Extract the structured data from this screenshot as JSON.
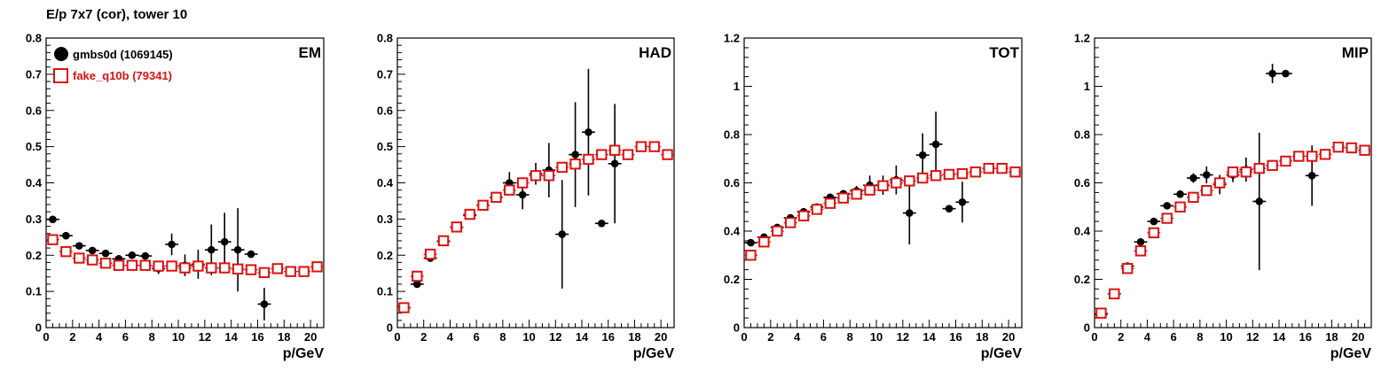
{
  "figure": {
    "title": "E/p 7x7 (cor), tower 10"
  },
  "legend": {
    "series_black": "gmbs0d (1069145)",
    "series_red": "fake_q10b (79341)"
  },
  "colors": {
    "black": "#000000",
    "red": "#dd1111"
  },
  "chart_data": [
    {
      "type": "scatter",
      "label": "EM",
      "xlabel": "p/GeV",
      "ylabel": "",
      "xlim": [
        0,
        21
      ],
      "ylim": [
        0,
        0.8
      ],
      "xticks": [
        0,
        2,
        4,
        6,
        8,
        10,
        12,
        14,
        16,
        18,
        20
      ],
      "yticks": [
        0,
        0.1,
        0.2,
        0.3,
        0.4,
        0.5,
        0.6,
        0.7,
        0.8
      ],
      "ytick_labels": [
        "0",
        "0.1",
        "0.2",
        "0.3",
        "0.4",
        "0.5",
        "0.6",
        "0.7",
        "0.8"
      ],
      "legend_position": "top-left",
      "series": [
        {
          "name": "gmbs0d (1069145)",
          "marker": "filled-circle",
          "points": [
            [
              0.5,
              0.299,
              0.008
            ],
            [
              1.5,
              0.254,
              0.008
            ],
            [
              2.5,
              0.226,
              0.008
            ],
            [
              3.5,
              0.213,
              0.008
            ],
            [
              4.5,
              0.205,
              0.008
            ],
            [
              5.5,
              0.19,
              0.008
            ],
            [
              6.5,
              0.2,
              0.01
            ],
            [
              7.5,
              0.198,
              0.01
            ],
            [
              8.5,
              0.163,
              0.015
            ],
            [
              9.5,
              0.23,
              0.03
            ],
            [
              10.5,
              0.172,
              0.03
            ],
            [
              11.5,
              0.175,
              0.04
            ],
            [
              12.5,
              0.215,
              0.07
            ],
            [
              13.5,
              0.237,
              0.08
            ],
            [
              14.5,
              0.215,
              0.115
            ],
            [
              15.5,
              0.203,
              0.01
            ],
            [
              16.5,
              0.065,
              0.045
            ]
          ]
        },
        {
          "name": "fake_q10b (79341)",
          "marker": "open-square",
          "points": [
            [
              0.5,
              0.243
            ],
            [
              1.5,
              0.21
            ],
            [
              2.5,
              0.192
            ],
            [
              3.5,
              0.187
            ],
            [
              4.5,
              0.178
            ],
            [
              5.5,
              0.172
            ],
            [
              6.5,
              0.172
            ],
            [
              7.5,
              0.172
            ],
            [
              8.5,
              0.17
            ],
            [
              9.5,
              0.17
            ],
            [
              10.5,
              0.165
            ],
            [
              11.5,
              0.17
            ],
            [
              12.5,
              0.165
            ],
            [
              13.5,
              0.165
            ],
            [
              14.5,
              0.162
            ],
            [
              15.5,
              0.16
            ],
            [
              16.5,
              0.152
            ],
            [
              17.5,
              0.163
            ],
            [
              18.5,
              0.155
            ],
            [
              19.5,
              0.155
            ],
            [
              20.5,
              0.168
            ]
          ]
        }
      ]
    },
    {
      "type": "scatter",
      "label": "HAD",
      "xlabel": "p/GeV",
      "ylabel": "",
      "xlim": [
        0,
        21
      ],
      "ylim": [
        0,
        0.8
      ],
      "xticks": [
        0,
        2,
        4,
        6,
        8,
        10,
        12,
        14,
        16,
        18,
        20
      ],
      "yticks": [
        0,
        0.1,
        0.2,
        0.3,
        0.4,
        0.5,
        0.6,
        0.7,
        0.8
      ],
      "ytick_labels": [
        "0",
        "0.1",
        "0.2",
        "0.3",
        "0.4",
        "0.5",
        "0.6",
        "0.7",
        "0.8"
      ],
      "series": [
        {
          "name": "gmbs0d (1069145)",
          "marker": "filled-circle",
          "points": [
            [
              0.5,
              0.055,
              0.005
            ],
            [
              1.5,
              0.12,
              0.008
            ],
            [
              2.5,
              0.192,
              0.008
            ],
            [
              3.5,
              0.238,
              0.008
            ],
            [
              4.5,
              0.277,
              0.008
            ],
            [
              5.5,
              0.31,
              0.008
            ],
            [
              6.5,
              0.338,
              0.01
            ],
            [
              7.5,
              0.36,
              0.015
            ],
            [
              8.5,
              0.4,
              0.03
            ],
            [
              9.5,
              0.367,
              0.04
            ],
            [
              10.5,
              0.425,
              0.03
            ],
            [
              11.5,
              0.435,
              0.075
            ],
            [
              12.5,
              0.258,
              0.15
            ],
            [
              13.5,
              0.478,
              0.145
            ],
            [
              14.5,
              0.54,
              0.175
            ],
            [
              15.5,
              0.288,
              0.005
            ],
            [
              16.5,
              0.453,
              0.165
            ]
          ]
        },
        {
          "name": "fake_q10b (79341)",
          "marker": "open-square",
          "points": [
            [
              0.5,
              0.055
            ],
            [
              1.5,
              0.142
            ],
            [
              2.5,
              0.203
            ],
            [
              3.5,
              0.24
            ],
            [
              4.5,
              0.278
            ],
            [
              5.5,
              0.313
            ],
            [
              6.5,
              0.338
            ],
            [
              7.5,
              0.36
            ],
            [
              8.5,
              0.38
            ],
            [
              9.5,
              0.4
            ],
            [
              10.5,
              0.42
            ],
            [
              11.5,
              0.42
            ],
            [
              12.5,
              0.443
            ],
            [
              13.5,
              0.452
            ],
            [
              14.5,
              0.465
            ],
            [
              15.5,
              0.478
            ],
            [
              16.5,
              0.49
            ],
            [
              17.5,
              0.478
            ],
            [
              18.5,
              0.5
            ],
            [
              19.5,
              0.5
            ],
            [
              20.5,
              0.478
            ]
          ]
        }
      ]
    },
    {
      "type": "scatter",
      "label": "TOT",
      "xlabel": "p/GeV",
      "ylabel": "",
      "xlim": [
        0,
        21
      ],
      "ylim": [
        0,
        1.2
      ],
      "xticks": [
        0,
        2,
        4,
        6,
        8,
        10,
        12,
        14,
        16,
        18,
        20
      ],
      "yticks": [
        0,
        0.2,
        0.4,
        0.6,
        0.8,
        1.0,
        1.2
      ],
      "ytick_labels": [
        "0",
        "0.2",
        "0.4",
        "0.6",
        "0.8",
        "1",
        "1.2"
      ],
      "series": [
        {
          "name": "gmbs0d (1069145)",
          "marker": "filled-circle",
          "points": [
            [
              0.5,
              0.352,
              0.01
            ],
            [
              1.5,
              0.375,
              0.01
            ],
            [
              2.5,
              0.415,
              0.01
            ],
            [
              3.5,
              0.455,
              0.01
            ],
            [
              4.5,
              0.48,
              0.01
            ],
            [
              5.5,
              0.5,
              0.01
            ],
            [
              6.5,
              0.54,
              0.01
            ],
            [
              7.5,
              0.555,
              0.015
            ],
            [
              8.5,
              0.567,
              0.02
            ],
            [
              9.5,
              0.59,
              0.04
            ],
            [
              10.5,
              0.59,
              0.04
            ],
            [
              11.5,
              0.612,
              0.06
            ],
            [
              12.5,
              0.475,
              0.13
            ],
            [
              13.5,
              0.715,
              0.09
            ],
            [
              14.5,
              0.76,
              0.135
            ],
            [
              15.5,
              0.493,
              0.01
            ],
            [
              16.5,
              0.52,
              0.085
            ]
          ]
        },
        {
          "name": "fake_q10b (79341)",
          "marker": "open-square",
          "points": [
            [
              0.5,
              0.3
            ],
            [
              1.5,
              0.355
            ],
            [
              2.5,
              0.4
            ],
            [
              3.5,
              0.435
            ],
            [
              4.5,
              0.463
            ],
            [
              5.5,
              0.49
            ],
            [
              6.5,
              0.515
            ],
            [
              7.5,
              0.537
            ],
            [
              8.5,
              0.553
            ],
            [
              9.5,
              0.57
            ],
            [
              10.5,
              0.588
            ],
            [
              11.5,
              0.6
            ],
            [
              12.5,
              0.608
            ],
            [
              13.5,
              0.62
            ],
            [
              14.5,
              0.63
            ],
            [
              15.5,
              0.635
            ],
            [
              16.5,
              0.638
            ],
            [
              17.5,
              0.645
            ],
            [
              18.5,
              0.66
            ],
            [
              19.5,
              0.66
            ],
            [
              20.5,
              0.645
            ]
          ]
        }
      ]
    },
    {
      "type": "scatter",
      "label": "MIP",
      "xlabel": "p/GeV",
      "ylabel": "",
      "xlim": [
        0,
        21
      ],
      "ylim": [
        0,
        1.2
      ],
      "xticks": [
        0,
        2,
        4,
        6,
        8,
        10,
        12,
        14,
        16,
        18,
        20
      ],
      "yticks": [
        0,
        0.2,
        0.4,
        0.6,
        0.8,
        1.0,
        1.2
      ],
      "ytick_labels": [
        "0",
        "0.2",
        "0.4",
        "0.6",
        "0.8",
        "1",
        "1.2"
      ],
      "series": [
        {
          "name": "gmbs0d (1069145)",
          "marker": "filled-circle",
          "points": [
            [
              0.5,
              0.055,
              0.01
            ],
            [
              1.5,
              0.14,
              0.01
            ],
            [
              2.5,
              0.255,
              0.01
            ],
            [
              3.5,
              0.355,
              0.01
            ],
            [
              4.5,
              0.44,
              0.01
            ],
            [
              5.5,
              0.505,
              0.01
            ],
            [
              6.5,
              0.553,
              0.015
            ],
            [
              7.5,
              0.62,
              0.02
            ],
            [
              8.5,
              0.633,
              0.035
            ],
            [
              9.5,
              0.593,
              0.04
            ],
            [
              10.5,
              0.633,
              0.03
            ],
            [
              11.5,
              0.655,
              0.05
            ],
            [
              12.5,
              0.523,
              0.285
            ],
            [
              13.5,
              1.053,
              0.04
            ],
            [
              14.5,
              1.053,
              0.01
            ],
            [
              16.5,
              0.63,
              0.125
            ]
          ]
        },
        {
          "name": "fake_q10b (79341)",
          "marker": "open-square",
          "points": [
            [
              0.5,
              0.06
            ],
            [
              1.5,
              0.14
            ],
            [
              2.5,
              0.245
            ],
            [
              3.5,
              0.318
            ],
            [
              4.5,
              0.393
            ],
            [
              5.5,
              0.453
            ],
            [
              6.5,
              0.5
            ],
            [
              7.5,
              0.54
            ],
            [
              8.5,
              0.568
            ],
            [
              9.5,
              0.6
            ],
            [
              10.5,
              0.645
            ],
            [
              11.5,
              0.645
            ],
            [
              12.5,
              0.66
            ],
            [
              13.5,
              0.672
            ],
            [
              14.5,
              0.69
            ],
            [
              15.5,
              0.71
            ],
            [
              16.5,
              0.71
            ],
            [
              17.5,
              0.718
            ],
            [
              18.5,
              0.748
            ],
            [
              19.5,
              0.745
            ],
            [
              20.5,
              0.735
            ]
          ]
        }
      ]
    }
  ]
}
